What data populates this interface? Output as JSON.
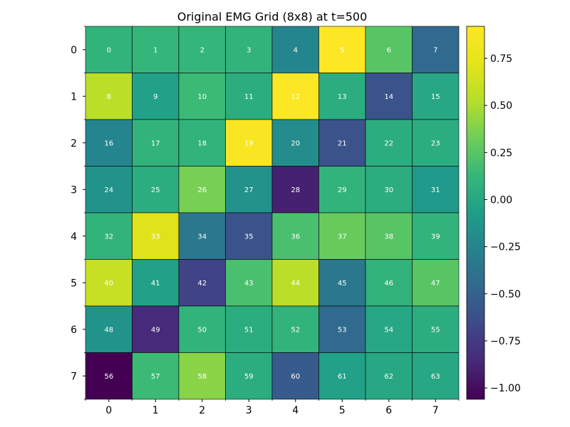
{
  "chart_data": {
    "type": "heatmap",
    "title": "Original EMG Grid (8x8) at t=500",
    "xlabel": "",
    "ylabel": "",
    "x_ticks": [
      "0",
      "1",
      "2",
      "3",
      "4",
      "5",
      "6",
      "7"
    ],
    "y_ticks": [
      "0",
      "1",
      "2",
      "3",
      "4",
      "5",
      "6",
      "7"
    ],
    "colormap": "viridis",
    "vmin": -1.06,
    "vmax": 0.92,
    "colorbar_ticks": [
      0.75,
      0.5,
      0.25,
      0.0,
      -0.25,
      -0.5,
      -0.75,
      -1.0
    ],
    "colorbar_tick_labels": [
      "0.75",
      "0.50",
      "0.25",
      "0.00",
      "−0.25",
      "−0.50",
      "−0.75",
      "−1.00"
    ],
    "cell_labels": [
      [
        "0",
        "1",
        "2",
        "3",
        "4",
        "5",
        "6",
        "7"
      ],
      [
        "8",
        "9",
        "10",
        "11",
        "12",
        "13",
        "14",
        "15"
      ],
      [
        "16",
        "17",
        "18",
        "19",
        "20",
        "21",
        "22",
        "23"
      ],
      [
        "24",
        "25",
        "26",
        "27",
        "28",
        "29",
        "30",
        "31"
      ],
      [
        "32",
        "33",
        "34",
        "35",
        "36",
        "37",
        "38",
        "39"
      ],
      [
        "40",
        "41",
        "42",
        "43",
        "44",
        "45",
        "46",
        "47"
      ],
      [
        "48",
        "49",
        "50",
        "51",
        "52",
        "53",
        "54",
        "55"
      ],
      [
        "56",
        "57",
        "58",
        "59",
        "60",
        "61",
        "62",
        "63"
      ]
    ],
    "values": [
      [
        0.1,
        0.12,
        0.12,
        0.1,
        -0.25,
        0.92,
        0.25,
        -0.45
      ],
      [
        0.55,
        -0.05,
        0.15,
        0.05,
        0.9,
        0.05,
        -0.6,
        0.0
      ],
      [
        -0.25,
        0.1,
        0.1,
        0.88,
        -0.2,
        -0.6,
        0.05,
        0.05
      ],
      [
        -0.15,
        0.05,
        0.35,
        -0.15,
        -0.9,
        0.1,
        0.05,
        -0.1
      ],
      [
        0.1,
        0.7,
        -0.35,
        -0.6,
        0.2,
        0.3,
        0.25,
        0.1
      ],
      [
        0.6,
        -0.05,
        -0.7,
        0.2,
        0.55,
        -0.35,
        0.1,
        0.25
      ],
      [
        -0.15,
        -0.85,
        0.1,
        0.05,
        0.1,
        -0.45,
        0.0,
        0.05
      ],
      [
        -1.06,
        0.15,
        0.4,
        0.05,
        -0.55,
        -0.05,
        0.0,
        0.0
      ]
    ]
  }
}
